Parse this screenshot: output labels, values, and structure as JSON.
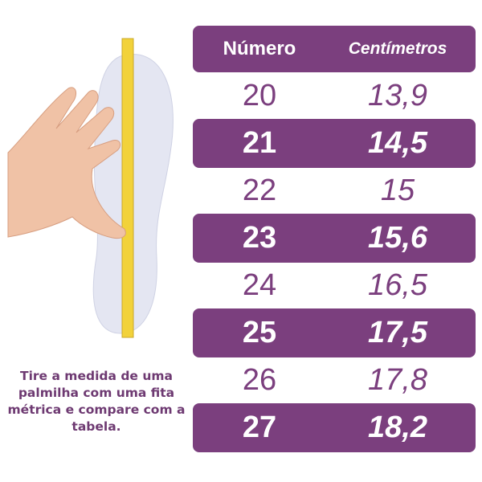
{
  "colors": {
    "accent": "#7b3f7e",
    "tape": "#f2d23a",
    "insole": "#e4e6f2"
  },
  "table": {
    "headers": {
      "number": "Número",
      "cm": "Centímetros"
    },
    "rows": [
      {
        "number": "20",
        "cm": "13,9"
      },
      {
        "number": "21",
        "cm": "14,5"
      },
      {
        "number": "22",
        "cm": "15"
      },
      {
        "number": "23",
        "cm": "15,6"
      },
      {
        "number": "24",
        "cm": "16,5"
      },
      {
        "number": "25",
        "cm": "17,5"
      },
      {
        "number": "26",
        "cm": "17,8"
      },
      {
        "number": "27",
        "cm": "18,2"
      }
    ]
  },
  "caption": "Tire a medida de uma palmilha com uma fita métrica e compare com a tabela."
}
